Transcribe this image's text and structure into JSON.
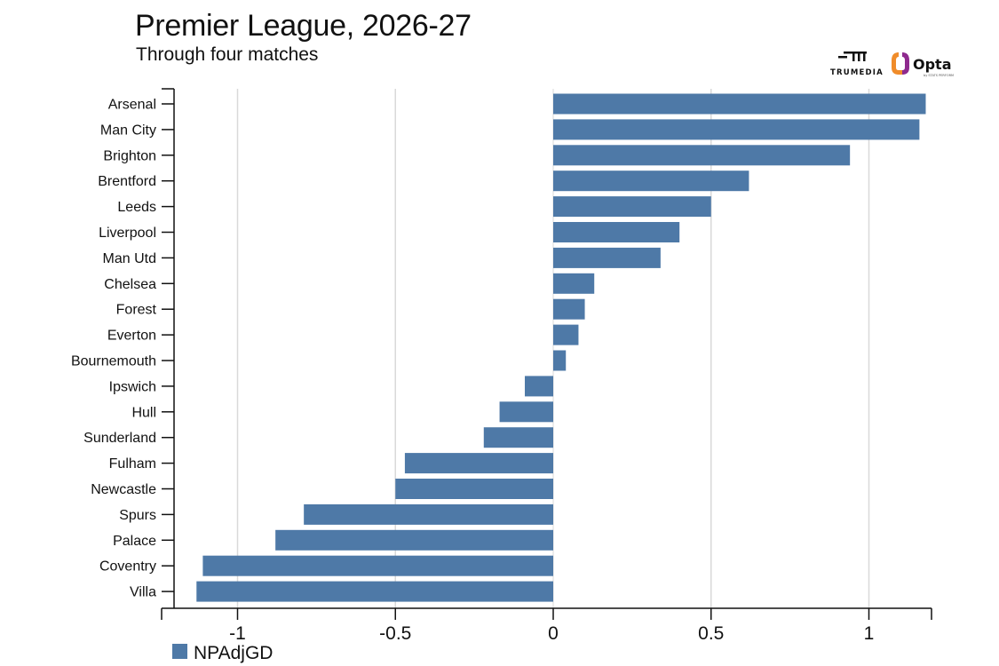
{
  "header": {
    "title": "Premier League, 2026-27",
    "subtitle": "Through four matches"
  },
  "logos": {
    "trumedia": "TRUMEDIA",
    "opta": "Opta",
    "opta_tagline": "by STATS PERFORM"
  },
  "colors": {
    "bar": "#4e79a7",
    "grid": "#d9d9d9",
    "axis": "#111111",
    "opta_orange": "#f08c2a",
    "opta_purple": "#8e2a8e"
  },
  "chart_data": {
    "type": "bar",
    "orientation": "horizontal",
    "categories": [
      "Arsenal",
      "Man City",
      "Brighton",
      "Brentford",
      "Leeds",
      "Liverpool",
      "Man Utd",
      "Chelsea",
      "Forest",
      "Everton",
      "Bournemouth",
      "Ipswich",
      "Hull",
      "Sunderland",
      "Fulham",
      "Newcastle",
      "Spurs",
      "Palace",
      "Coventry",
      "Villa"
    ],
    "series": [
      {
        "name": "NPAdjGD",
        "values": [
          1.18,
          1.16,
          0.94,
          0.62,
          0.5,
          0.4,
          0.34,
          0.13,
          0.1,
          0.08,
          0.04,
          -0.09,
          -0.17,
          -0.22,
          -0.47,
          -0.5,
          -0.79,
          -0.88,
          -1.11,
          -1.13
        ]
      }
    ],
    "xlim": [
      -1.2,
      1.2
    ],
    "xticks": [
      -1,
      -0.5,
      0,
      0.5,
      1
    ],
    "xtick_labels": [
      "-1",
      "-0.5",
      "0",
      "0.5",
      "1"
    ],
    "grid": true,
    "legend_position": "bottom-left"
  }
}
